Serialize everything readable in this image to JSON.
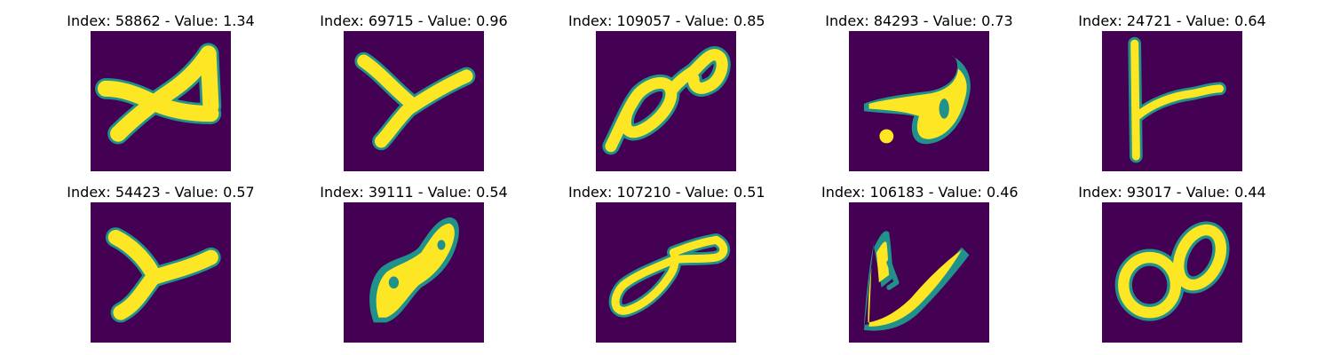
{
  "colors": {
    "background": "#440154",
    "edge": "#21918c",
    "stroke": "#fde725",
    "mid": "#5ec962"
  },
  "panels": [
    {
      "title": "Index: 58862 - Value: 1.34",
      "glyph": "x-cross"
    },
    {
      "title": "Index: 69715 - Value: 0.96",
      "glyph": "y-shape"
    },
    {
      "title": "Index: 109057 - Value: 0.85",
      "glyph": "figure-eight-slanted"
    },
    {
      "title": "Index: 84293 - Value: 0.73",
      "glyph": "blob-hook"
    },
    {
      "title": "Index: 24721 - Value: 0.64",
      "glyph": "vertical-with-branch"
    },
    {
      "title": "Index: 54423 - Value: 0.57",
      "glyph": "y-shape"
    },
    {
      "title": "Index: 39111 - Value: 0.54",
      "glyph": "figure-eight-slanted"
    },
    {
      "title": "Index: 107210 - Value: 0.51",
      "glyph": "figure-eight-flat"
    },
    {
      "title": "Index: 106183 - Value: 0.46",
      "glyph": "v-shape"
    },
    {
      "title": "Index: 93017 - Value: 0.44",
      "glyph": "figure-eight-round"
    }
  ]
}
